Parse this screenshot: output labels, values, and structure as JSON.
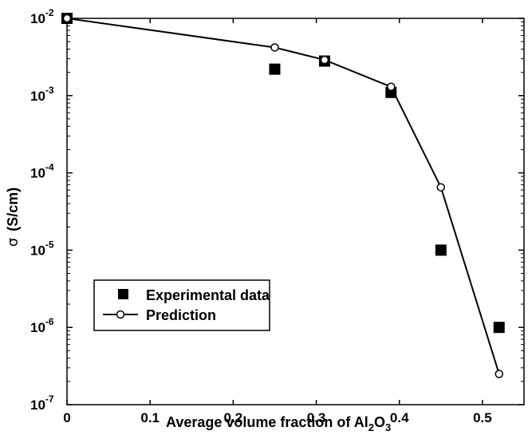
{
  "chart_data": {
    "type": "scatter",
    "xlabel": "Average volume fraction of Al",
    "xlabel_sub1": "2",
    "xlabel_mid": "O",
    "xlabel_sub2": "3",
    "ylabel": "(S/cm)",
    "ylabel_symbol": "σ",
    "x_scale": "linear",
    "y_scale": "log",
    "xlim": [
      0,
      0.55
    ],
    "ylim": [
      1e-07,
      0.01
    ],
    "x_ticks": [
      0,
      0.1,
      0.2,
      0.3,
      0.4,
      0.5
    ],
    "x_tick_labels": [
      "0",
      "0.1",
      "0.2",
      "0.3",
      "0.4",
      "0.5"
    ],
    "y_ticks": [
      {
        "value": 0.01,
        "base": "10",
        "exp": "-2"
      },
      {
        "value": 0.001,
        "base": "10",
        "exp": "-3"
      },
      {
        "value": 0.0001,
        "base": "10",
        "exp": "-4"
      },
      {
        "value": 1e-05,
        "base": "10",
        "exp": "-5"
      },
      {
        "value": 1e-06,
        "base": "10",
        "exp": "-6"
      },
      {
        "value": 1e-07,
        "base": "10",
        "exp": "-7"
      }
    ],
    "grid": false,
    "legend_position": "bottom-left",
    "series": [
      {
        "name": "Experimental data",
        "style": "filled-square-markers",
        "color": "#000000",
        "x": [
          0,
          0.25,
          0.31,
          0.39,
          0.45,
          0.52
        ],
        "y": [
          0.01,
          0.0022,
          0.0028,
          0.0011,
          1e-05,
          1e-06
        ]
      },
      {
        "name": "Prediction",
        "style": "line-open-circle-markers",
        "color": "#000000",
        "x": [
          0,
          0.25,
          0.31,
          0.39,
          0.45,
          0.52
        ],
        "y": [
          0.01,
          0.0042,
          0.0029,
          0.0013,
          6.5e-05,
          2.5e-07
        ]
      }
    ]
  }
}
